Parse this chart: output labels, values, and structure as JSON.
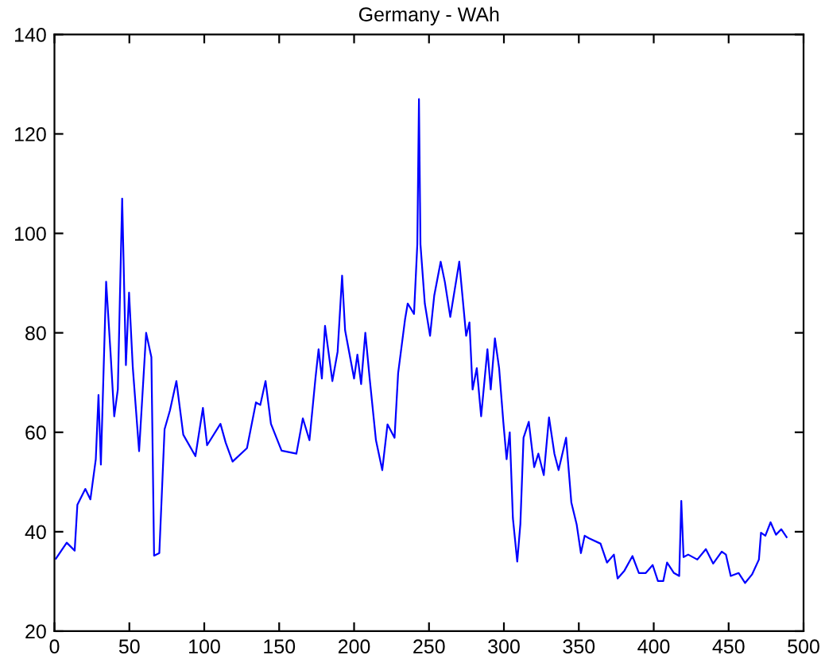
{
  "chart_data": {
    "type": "line",
    "title": "Germany - WAh",
    "xlim": [
      0,
      500
    ],
    "xticks": [
      0,
      50,
      100,
      150,
      200,
      250,
      300,
      350,
      400,
      450,
      500
    ],
    "ylim": [
      20,
      140
    ],
    "yticks": [
      20,
      40,
      60,
      80,
      100,
      120,
      140
    ],
    "grid": false,
    "legend": false,
    "series": [
      {
        "color": "#0000ff",
        "x": [
          1,
          8.2,
          13.5,
          15.3,
          20.6,
          24,
          27.6,
          29.4,
          31,
          34.5,
          37.4,
          39.9,
          42.3,
          45.2,
          47.7,
          49.8,
          52.3,
          56.5,
          61.2,
          64.7,
          66.5,
          70,
          73.5,
          77.1,
          81.4,
          86,
          94.1,
          99.1,
          101.9,
          110.8,
          114.3,
          118.9,
          128.5,
          134.5,
          137.4,
          140.9,
          144.5,
          151.6,
          161.5,
          165.8,
          170.2,
          174.2,
          176.3,
          178.5,
          180.6,
          185.5,
          189,
          192,
          194,
          200,
          202.2,
          204.7,
          207.5,
          210.4,
          214.6,
          218.8,
          222.3,
          227,
          229.4,
          234,
          235.8,
          240,
          242.2,
          243.3,
          244.3,
          247.2,
          250.7,
          253.5,
          257.8,
          260.6,
          264.2,
          270.2,
          274.8,
          277,
          279.1,
          281.9,
          284.8,
          289,
          291.2,
          294,
          296.8,
          299.6,
          301.8,
          303.9,
          306,
          308.9,
          311,
          313.1,
          316.6,
          320.2,
          323,
          326.6,
          330.1,
          333.7,
          336.5,
          341.5,
          345,
          348.6,
          351.4,
          353.9,
          356.7,
          364.5,
          368.8,
          373.4,
          375.9,
          380.5,
          385.8,
          390.1,
          394.7,
          399.3,
          402.8,
          406.4,
          408.9,
          413.5,
          417,
          418.4,
          419.9,
          423,
          429.1,
          434.8,
          439.7,
          445.4,
          448.2,
          451.4,
          456.7,
          461,
          465.6,
          470.2,
          471.6,
          474.5,
          478,
          481.6,
          485.1,
          488.7
        ],
        "values": [
          34.6,
          37.8,
          36.2,
          45.4,
          48.6,
          46.5,
          54.6,
          67.5,
          53.5,
          90.3,
          76.2,
          63.2,
          68.6,
          107,
          73.5,
          88.1,
          73,
          56.2,
          80,
          75.1,
          35.2,
          35.7,
          60.6,
          64.4,
          70.3,
          59.5,
          55.2,
          64.9,
          57.4,
          61.7,
          57.9,
          54.1,
          56.8,
          66,
          65.5,
          70.3,
          61.7,
          56.3,
          55.7,
          62.8,
          58.4,
          70.8,
          76.7,
          70.8,
          81.4,
          70.3,
          76.2,
          91.5,
          80.5,
          70.8,
          75.6,
          69.7,
          80,
          70.8,
          58.4,
          52.4,
          61.6,
          58.9,
          71.9,
          82.7,
          85.9,
          83.8,
          97.8,
          127,
          97.8,
          85.9,
          79.4,
          87.5,
          94.3,
          90.2,
          83.2,
          94.3,
          79.4,
          82.1,
          68.6,
          72.9,
          63.2,
          76.7,
          68.6,
          78.9,
          72.9,
          62.1,
          54.6,
          60,
          42.7,
          34,
          41.6,
          58.9,
          62.1,
          53,
          55.7,
          51.4,
          63,
          55.7,
          52.4,
          58.9,
          45.9,
          41.4,
          35.7,
          39.2,
          38.7,
          37.6,
          33.8,
          35.4,
          30.6,
          32.2,
          35.1,
          31.7,
          31.7,
          33.3,
          30.1,
          30.1,
          33.8,
          31.7,
          31.1,
          46.2,
          34.9,
          35.4,
          34.4,
          36.5,
          33.6,
          36,
          35.4,
          31.1,
          31.7,
          29.7,
          31.4,
          34.4,
          39.8,
          39.2,
          41.9,
          39.4,
          40.5,
          38.9
        ]
      }
    ]
  }
}
